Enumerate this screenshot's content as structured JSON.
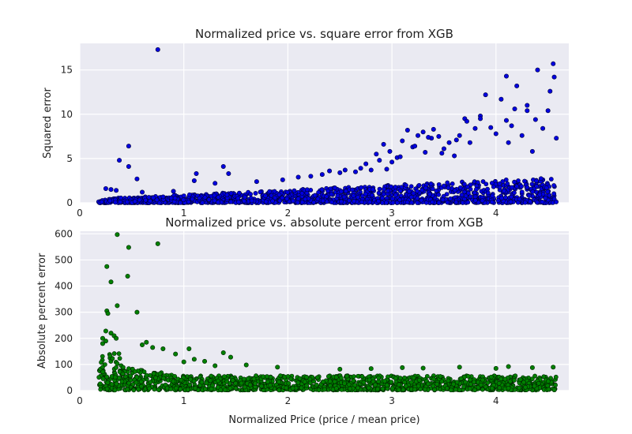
{
  "chart_data": [
    {
      "type": "scatter",
      "title": "Normalized price vs. square error from XGB",
      "xlabel": "",
      "ylabel": "Squared error",
      "xlim": [
        0,
        4.7
      ],
      "ylim": [
        0,
        18
      ],
      "xticks": [
        0,
        1,
        2,
        3,
        4
      ],
      "yticks": [
        0,
        5,
        10,
        15
      ],
      "grid": true,
      "marker_color": "#0000e0",
      "x": [
        0.75,
        0.47,
        0.38,
        0.47,
        0.55,
        0.25,
        0.3,
        0.35,
        0.6,
        0.9,
        1.1,
        1.12,
        1.38,
        1.43,
        1.3,
        1.7,
        1.95,
        2.1,
        2.22,
        2.33,
        2.4,
        2.55,
        2.65,
        2.75,
        2.8,
        2.85,
        2.92,
        2.95,
        3.0,
        3.05,
        3.1,
        3.15,
        3.2,
        3.25,
        3.3,
        3.32,
        3.38,
        3.4,
        3.45,
        3.5,
        3.55,
        3.6,
        3.65,
        3.7,
        3.72,
        3.8,
        3.85,
        3.9,
        3.95,
        4.0,
        4.05,
        4.1,
        4.12,
        4.15,
        4.18,
        4.2,
        4.25,
        4.3,
        4.35,
        4.38,
        4.4,
        4.45,
        4.5,
        4.52,
        4.55,
        4.56,
        4.58,
        4.3,
        4.1,
        3.85,
        3.75,
        3.62,
        3.48,
        3.35,
        3.22,
        3.08,
        2.98,
        2.88,
        2.7,
        2.5
      ],
      "y": [
        17.3,
        6.4,
        4.8,
        4.1,
        2.7,
        1.6,
        1.5,
        1.4,
        1.2,
        1.3,
        2.5,
        3.3,
        4.1,
        3.3,
        2.2,
        2.4,
        2.6,
        2.9,
        3.0,
        3.2,
        3.6,
        3.7,
        3.5,
        4.4,
        3.7,
        5.5,
        6.6,
        3.8,
        4.6,
        5.1,
        7.0,
        8.2,
        6.3,
        7.6,
        8.0,
        5.7,
        7.3,
        8.3,
        7.5,
        6.1,
        6.8,
        5.3,
        7.6,
        9.5,
        9.2,
        8.4,
        9.8,
        12.2,
        8.5,
        7.8,
        11.7,
        9.3,
        6.8,
        8.7,
        10.6,
        13.2,
        7.6,
        10.4,
        5.8,
        9.4,
        15.0,
        8.4,
        10.4,
        12.6,
        15.7,
        14.2,
        7.3,
        11.0,
        14.3,
        9.5,
        6.8,
        7.1,
        5.6,
        7.4,
        6.4,
        5.2,
        5.8,
        4.8,
        3.9,
        3.4
      ]
    },
    {
      "type": "scatter",
      "title": "Normalized price vs. absolute percent error from XGB",
      "xlabel": "Normalized Price (price / mean price)",
      "ylabel": "Absolute percent error",
      "xlim": [
        0,
        4.7
      ],
      "ylim": [
        0,
        610
      ],
      "xticks": [
        0,
        1,
        2,
        3,
        4
      ],
      "yticks": [
        0,
        100,
        200,
        300,
        400,
        500,
        600
      ],
      "grid": true,
      "marker_color": "#008000",
      "x": [
        0.36,
        0.47,
        0.75,
        0.26,
        0.3,
        0.46,
        0.36,
        0.26,
        0.27,
        0.55,
        0.25,
        0.22,
        0.3,
        0.33,
        0.35,
        0.22,
        0.25,
        0.64,
        0.6,
        0.7,
        0.8,
        0.92,
        1.05,
        1.0,
        1.1,
        1.2,
        1.38,
        1.45,
        1.3,
        1.6,
        1.9,
        2.5,
        3.1,
        3.65,
        4.12,
        4.0,
        4.35,
        4.55,
        3.3,
        2.8
      ],
      "y": [
        597,
        548,
        562,
        475,
        416,
        438,
        325,
        305,
        295,
        300,
        228,
        200,
        220,
        210,
        200,
        180,
        190,
        185,
        175,
        165,
        160,
        140,
        160,
        110,
        120,
        112,
        145,
        128,
        95,
        98,
        90,
        82,
        88,
        90,
        92,
        85,
        88,
        90,
        86,
        84
      ]
    }
  ]
}
